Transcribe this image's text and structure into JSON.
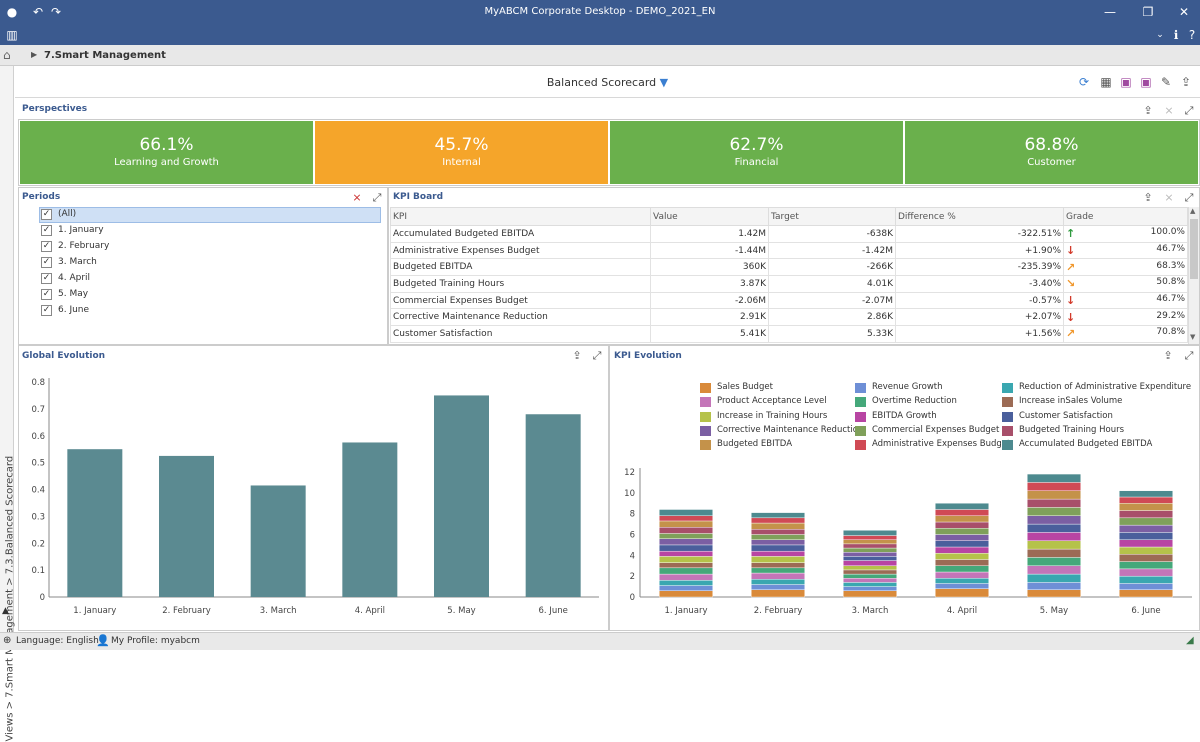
{
  "window": {
    "title": "MyABCM Corporate Desktop - DEMO_2021_EN"
  },
  "nav": {
    "breadcrumb": "7.Smart Management",
    "side_path": "Views > 7.Smart Management > 7.3.Balanced Scorecard"
  },
  "dashboard": {
    "title": "Balanced Scorecard"
  },
  "perspectives": {
    "title": "Perspectives",
    "tiles": [
      {
        "value": "66.1%",
        "label": "Learning and Growth",
        "color": "#6ab04c"
      },
      {
        "value": "45.7%",
        "label": "Internal",
        "color": "#f5a52a"
      },
      {
        "value": "62.7%",
        "label": "Financial",
        "color": "#6ab04c"
      },
      {
        "value": "68.8%",
        "label": "Customer",
        "color": "#6ab04c"
      }
    ]
  },
  "periods": {
    "title": "Periods",
    "items": [
      "(All)",
      "1. January",
      "2. February",
      "3. March",
      "4. April",
      "5. May",
      "6. June"
    ]
  },
  "kpi_board": {
    "title": "KPI Board",
    "columns": [
      "KPI",
      "Value",
      "Target",
      "Difference %",
      "Grade"
    ],
    "rows": [
      {
        "kpi": "Accumulated Budgeted EBITDA",
        "value": "1.42M",
        "target": "-638K",
        "diff": "-322.51%",
        "arrow": "up",
        "grade": "100.0%"
      },
      {
        "kpi": "Administrative Expenses Budget",
        "value": "-1.44M",
        "target": "-1.42M",
        "diff": "+1.90%",
        "arrow": "down",
        "grade": "46.7%"
      },
      {
        "kpi": "Budgeted EBITDA",
        "value": "360K",
        "target": "-266K",
        "diff": "-235.39%",
        "arrow": "up-right",
        "grade": "68.3%"
      },
      {
        "kpi": "Budgeted Training Hours",
        "value": "3.87K",
        "target": "4.01K",
        "diff": "-3.40%",
        "arrow": "down-right",
        "grade": "50.8%"
      },
      {
        "kpi": "Commercial Expenses Budget",
        "value": "-2.06M",
        "target": "-2.07M",
        "diff": "-0.57%",
        "arrow": "down",
        "grade": "46.7%"
      },
      {
        "kpi": "Corrective Maintenance Reduction",
        "value": "2.91K",
        "target": "2.86K",
        "diff": "+2.07%",
        "arrow": "down",
        "grade": "29.2%"
      },
      {
        "kpi": "Customer Satisfaction",
        "value": "5.41K",
        "target": "5.33K",
        "diff": "+1.56%",
        "arrow": "up-right",
        "grade": "70.8%"
      }
    ]
  },
  "status": {
    "language": "Language: English",
    "profile": "My Profile: myabcm"
  },
  "chart_data": [
    {
      "type": "bar",
      "title": "Global Evolution",
      "categories": [
        "1. January",
        "2. February",
        "3. March",
        "4. April",
        "5. May",
        "6. June"
      ],
      "values": [
        0.55,
        0.525,
        0.415,
        0.575,
        0.75,
        0.68
      ],
      "ylim": [
        0,
        0.8
      ],
      "yticks": [
        "0",
        "0.1",
        "0.2",
        "0.3",
        "0.4",
        "0.5",
        "0.6",
        "0.7",
        "0.8"
      ],
      "color": "#5b8a91",
      "grid": false
    },
    {
      "type": "bar",
      "title": "KPI Evolution",
      "stacked": true,
      "legend_position": "top",
      "categories": [
        "1. January",
        "2. February",
        "3. March",
        "4. April",
        "5. May",
        "6. June"
      ],
      "ylim": [
        0,
        12
      ],
      "yticks": [
        "0",
        "2",
        "4",
        "6",
        "8",
        "10",
        "12"
      ],
      "series": [
        {
          "name": "Sales Budget",
          "color": "#d98a3a",
          "values": [
            0.6,
            0.7,
            0.6,
            0.8,
            0.7,
            0.7
          ]
        },
        {
          "name": "Revenue Growth",
          "color": "#6e8fd6",
          "values": [
            0.5,
            0.5,
            0.4,
            0.5,
            0.7,
            0.6
          ]
        },
        {
          "name": "Reduction of Administrative Expenditure",
          "color": "#3aa7b0",
          "values": [
            0.5,
            0.5,
            0.4,
            0.5,
            0.8,
            0.7
          ]
        },
        {
          "name": "Product Acceptance Level",
          "color": "#c475b8",
          "values": [
            0.6,
            0.6,
            0.4,
            0.6,
            0.8,
            0.7
          ]
        },
        {
          "name": "Overtime Reduction",
          "color": "#45a87a",
          "values": [
            0.6,
            0.5,
            0.4,
            0.6,
            0.8,
            0.7
          ]
        },
        {
          "name": "Increase inSales Volume",
          "color": "#9c6b55",
          "values": [
            0.5,
            0.5,
            0.4,
            0.6,
            0.8,
            0.7
          ]
        },
        {
          "name": "Increase in Training Hours",
          "color": "#b5c24a",
          "values": [
            0.6,
            0.6,
            0.4,
            0.6,
            0.8,
            0.7
          ]
        },
        {
          "name": "EBITDA Growth",
          "color": "#b845a3",
          "values": [
            0.5,
            0.5,
            0.5,
            0.6,
            0.8,
            0.7
          ]
        },
        {
          "name": "Customer Satisfaction",
          "color": "#4a5f9c",
          "values": [
            0.6,
            0.6,
            0.4,
            0.6,
            0.8,
            0.7
          ]
        },
        {
          "name": "Corrective Maintenance Reduction",
          "color": "#7b5fa3",
          "values": [
            0.6,
            0.5,
            0.4,
            0.6,
            0.8,
            0.7
          ]
        },
        {
          "name": "Commercial Expenses Budget",
          "color": "#7fa05a",
          "values": [
            0.5,
            0.5,
            0.4,
            0.6,
            0.8,
            0.7
          ]
        },
        {
          "name": "Budgeted Training Hours",
          "color": "#a84f6a",
          "values": [
            0.6,
            0.5,
            0.4,
            0.6,
            0.8,
            0.7
          ]
        },
        {
          "name": "Budgeted EBITDA",
          "color": "#c4924a",
          "values": [
            0.6,
            0.6,
            0.4,
            0.6,
            0.8,
            0.7
          ]
        },
        {
          "name": "Administrative Expenses Budget",
          "color": "#d04a55",
          "values": [
            0.5,
            0.5,
            0.4,
            0.6,
            0.8,
            0.6
          ]
        },
        {
          "name": "Accumulated Budgeted EBITDA",
          "color": "#4d8a8f",
          "values": [
            0.6,
            0.5,
            0.5,
            0.6,
            0.8,
            0.6
          ]
        }
      ]
    }
  ]
}
